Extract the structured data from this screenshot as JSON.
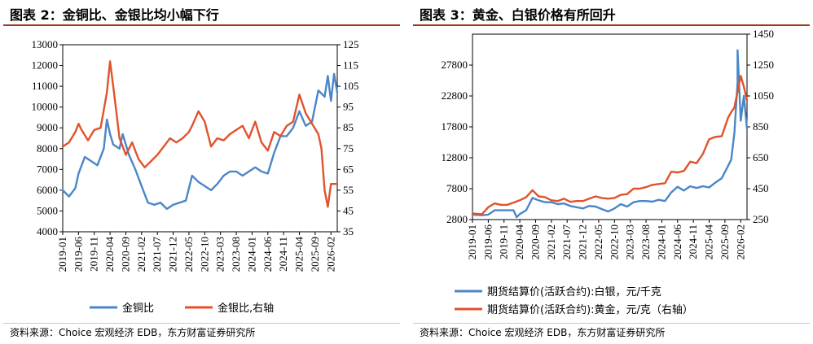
{
  "panels": [
    {
      "title": "图表 2：金铜比、金银比均小幅下行",
      "source": "资料来源：Choice 宏观经济 EDB，东方财富证券研究所"
    },
    {
      "title": "图表 3：黄金、白银价格有所回升",
      "source": "资料来源：Choice 宏观经济 EDB，东方财富证券研究所"
    }
  ],
  "chart_data": [
    {
      "type": "line",
      "x_ticks": [
        "2019-01",
        "2019-06",
        "2019-11",
        "2020-04",
        "2020-09",
        "2021-02",
        "2021-07",
        "2021-12",
        "2022-05",
        "2022-10",
        "2023-03",
        "2023-08",
        "2024-01",
        "2024-06",
        "2024-11",
        "2025-04",
        "2025-09",
        "2026-02"
      ],
      "x_range": [
        "2019-01",
        "2026-04"
      ],
      "y_left": {
        "range": [
          4000,
          13000
        ],
        "ticks": [
          "4000",
          "5000",
          "6000",
          "7000",
          "8000",
          "9000",
          "10000",
          "11000",
          "12000",
          "13000"
        ]
      },
      "y_right": {
        "range": [
          35,
          125
        ],
        "ticks": [
          "35",
          "45",
          "55",
          "65",
          "75",
          "85",
          "95",
          "105",
          "115",
          "125"
        ]
      },
      "legend_position": "bottom",
      "grid": false,
      "series": [
        {
          "name": "金铜比",
          "axis": "left",
          "color": "#4a86c8",
          "points": [
            [
              "2019-01",
              6000
            ],
            [
              "2019-03",
              5700
            ],
            [
              "2019-05",
              6100
            ],
            [
              "2019-06",
              6800
            ],
            [
              "2019-08",
              7600
            ],
            [
              "2019-10",
              7400
            ],
            [
              "2019-12",
              7200
            ],
            [
              "2020-02",
              8000
            ],
            [
              "2020-03",
              9400
            ],
            [
              "2020-04",
              8700
            ],
            [
              "2020-05",
              8200
            ],
            [
              "2020-07",
              8000
            ],
            [
              "2020-08",
              8700
            ],
            [
              "2020-10",
              7700
            ],
            [
              "2020-12",
              7000
            ],
            [
              "2021-02",
              6200
            ],
            [
              "2021-04",
              5400
            ],
            [
              "2021-06",
              5300
            ],
            [
              "2021-08",
              5400
            ],
            [
              "2021-10",
              5100
            ],
            [
              "2021-12",
              5300
            ],
            [
              "2022-02",
              5400
            ],
            [
              "2022-04",
              5500
            ],
            [
              "2022-06",
              6700
            ],
            [
              "2022-08",
              6400
            ],
            [
              "2022-10",
              6200
            ],
            [
              "2022-12",
              6000
            ],
            [
              "2023-02",
              6300
            ],
            [
              "2023-04",
              6700
            ],
            [
              "2023-06",
              6900
            ],
            [
              "2023-08",
              6900
            ],
            [
              "2023-10",
              6700
            ],
            [
              "2023-12",
              6900
            ],
            [
              "2024-02",
              7100
            ],
            [
              "2024-04",
              6900
            ],
            [
              "2024-06",
              6800
            ],
            [
              "2024-08",
              7800
            ],
            [
              "2024-10",
              8600
            ],
            [
              "2024-12",
              8600
            ],
            [
              "2025-02",
              9000
            ],
            [
              "2025-04",
              9800
            ],
            [
              "2025-06",
              9100
            ],
            [
              "2025-08",
              9300
            ],
            [
              "2025-10",
              10800
            ],
            [
              "2025-12",
              10500
            ],
            [
              "2026-01",
              11500
            ],
            [
              "2026-02",
              10300
            ],
            [
              "2026-03",
              11600
            ],
            [
              "2026-04",
              10700
            ]
          ]
        },
        {
          "name": "金银比,右轴",
          "axis": "right",
          "color": "#e0532b",
          "points": [
            [
              "2019-01",
              76
            ],
            [
              "2019-03",
              78
            ],
            [
              "2019-05",
              83
            ],
            [
              "2019-06",
              87
            ],
            [
              "2019-07",
              84
            ],
            [
              "2019-09",
              79
            ],
            [
              "2019-11",
              84
            ],
            [
              "2020-01",
              85
            ],
            [
              "2020-03",
              102
            ],
            [
              "2020-04",
              117
            ],
            [
              "2020-05",
              105
            ],
            [
              "2020-07",
              80
            ],
            [
              "2020-09",
              72
            ],
            [
              "2020-11",
              78
            ],
            [
              "2021-01",
              70
            ],
            [
              "2021-03",
              66
            ],
            [
              "2021-05",
              69
            ],
            [
              "2021-07",
              72
            ],
            [
              "2021-09",
              76
            ],
            [
              "2021-11",
              80
            ],
            [
              "2022-01",
              78
            ],
            [
              "2022-03",
              80
            ],
            [
              "2022-05",
              83
            ],
            [
              "2022-06",
              86
            ],
            [
              "2022-08",
              93
            ],
            [
              "2022-10",
              88
            ],
            [
              "2022-12",
              76
            ],
            [
              "2023-02",
              80
            ],
            [
              "2023-04",
              79
            ],
            [
              "2023-06",
              82
            ],
            [
              "2023-08",
              84
            ],
            [
              "2023-10",
              86
            ],
            [
              "2023-12",
              80
            ],
            [
              "2024-02",
              88
            ],
            [
              "2024-04",
              78
            ],
            [
              "2024-06",
              74
            ],
            [
              "2024-08",
              83
            ],
            [
              "2024-10",
              81
            ],
            [
              "2024-12",
              86
            ],
            [
              "2025-02",
              88
            ],
            [
              "2025-04",
              101
            ],
            [
              "2025-06",
              92
            ],
            [
              "2025-08",
              87
            ],
            [
              "2025-10",
              82
            ],
            [
              "2025-11",
              75
            ],
            [
              "2025-12",
              55
            ],
            [
              "2026-01",
              47
            ],
            [
              "2026-02",
              58
            ],
            [
              "2026-04",
              58
            ]
          ]
        }
      ]
    },
    {
      "type": "line",
      "x_ticks": [
        "2019-01",
        "2019-06",
        "2019-11",
        "2020-04",
        "2020-09",
        "2021-02",
        "2021-07",
        "2021-12",
        "2022-05",
        "2022-10",
        "2023-03",
        "2023-08",
        "2024-01",
        "2024-06",
        "2024-11",
        "2025-04",
        "2025-09",
        "2026-02"
      ],
      "x_range": [
        "2019-01",
        "2026-04"
      ],
      "y_left": {
        "range": [
          2800,
          32800
        ],
        "ticks": [
          "2800",
          "7800",
          "12800",
          "17800",
          "22800",
          "27800"
        ]
      },
      "y_right": {
        "range": [
          250,
          1450
        ],
        "ticks": [
          "250",
          "450",
          "650",
          "850",
          "1050",
          "1250",
          "1450"
        ]
      },
      "legend_position": "bottom",
      "grid": false,
      "series": [
        {
          "name": "期货结算价(活跃合约):白银，元/千克",
          "axis": "left",
          "color": "#4a86c8",
          "points": [
            [
              "2019-01",
              3600
            ],
            [
              "2019-04",
              3500
            ],
            [
              "2019-06",
              3600
            ],
            [
              "2019-08",
              4300
            ],
            [
              "2019-10",
              4300
            ],
            [
              "2019-12",
              4300
            ],
            [
              "2020-02",
              4300
            ],
            [
              "2020-03",
              3200
            ],
            [
              "2020-04",
              3700
            ],
            [
              "2020-06",
              4300
            ],
            [
              "2020-08",
              6300
            ],
            [
              "2020-10",
              5900
            ],
            [
              "2020-12",
              5600
            ],
            [
              "2021-02",
              5600
            ],
            [
              "2021-04",
              5300
            ],
            [
              "2021-06",
              5400
            ],
            [
              "2021-08",
              5000
            ],
            [
              "2021-10",
              4800
            ],
            [
              "2021-12",
              4600
            ],
            [
              "2022-02",
              5000
            ],
            [
              "2022-04",
              4900
            ],
            [
              "2022-06",
              4500
            ],
            [
              "2022-08",
              4100
            ],
            [
              "2022-10",
              4600
            ],
            [
              "2022-12",
              5300
            ],
            [
              "2023-02",
              4900
            ],
            [
              "2023-04",
              5600
            ],
            [
              "2023-06",
              5800
            ],
            [
              "2023-08",
              5800
            ],
            [
              "2023-10",
              5700
            ],
            [
              "2023-12",
              6000
            ],
            [
              "2024-02",
              5800
            ],
            [
              "2024-04",
              7200
            ],
            [
              "2024-06",
              8100
            ],
            [
              "2024-08",
              7500
            ],
            [
              "2024-10",
              8200
            ],
            [
              "2024-12",
              7900
            ],
            [
              "2025-02",
              8200
            ],
            [
              "2025-04",
              8000
            ],
            [
              "2025-06",
              8800
            ],
            [
              "2025-08",
              9500
            ],
            [
              "2025-10",
              11500
            ],
            [
              "2025-11",
              12500
            ],
            [
              "2025-12",
              16800
            ],
            [
              "2026-01",
              25000
            ],
            [
              "2026-01",
              30200
            ],
            [
              "2026-02",
              18800
            ],
            [
              "2026-03",
              22800
            ],
            [
              "2026-04",
              17500
            ]
          ]
        },
        {
          "name": "期货结算价(活跃合约):黄金，元/克（右轴）",
          "axis": "right",
          "color": "#e0532b",
          "points": [
            [
              "2019-01",
              290
            ],
            [
              "2019-04",
              285
            ],
            [
              "2019-06",
              330
            ],
            [
              "2019-08",
              355
            ],
            [
              "2019-10",
              345
            ],
            [
              "2019-12",
              345
            ],
            [
              "2020-02",
              360
            ],
            [
              "2020-04",
              375
            ],
            [
              "2020-06",
              395
            ],
            [
              "2020-08",
              440
            ],
            [
              "2020-10",
              400
            ],
            [
              "2020-12",
              395
            ],
            [
              "2021-02",
              375
            ],
            [
              "2021-04",
              370
            ],
            [
              "2021-06",
              385
            ],
            [
              "2021-08",
              365
            ],
            [
              "2021-10",
              370
            ],
            [
              "2021-12",
              370
            ],
            [
              "2022-02",
              385
            ],
            [
              "2022-04",
              400
            ],
            [
              "2022-06",
              390
            ],
            [
              "2022-08",
              385
            ],
            [
              "2022-10",
              390
            ],
            [
              "2022-12",
              410
            ],
            [
              "2023-02",
              415
            ],
            [
              "2023-04",
              450
            ],
            [
              "2023-06",
              450
            ],
            [
              "2023-08",
              460
            ],
            [
              "2023-10",
              475
            ],
            [
              "2023-12",
              480
            ],
            [
              "2024-02",
              485
            ],
            [
              "2024-04",
              560
            ],
            [
              "2024-06",
              555
            ],
            [
              "2024-08",
              565
            ],
            [
              "2024-10",
              625
            ],
            [
              "2024-12",
              615
            ],
            [
              "2025-02",
              675
            ],
            [
              "2025-04",
              770
            ],
            [
              "2025-06",
              785
            ],
            [
              "2025-08",
              790
            ],
            [
              "2025-10",
              910
            ],
            [
              "2025-11",
              945
            ],
            [
              "2025-12",
              975
            ],
            [
              "2026-01",
              1080
            ],
            [
              "2026-02",
              1180
            ],
            [
              "2026-03",
              1110
            ],
            [
              "2026-04",
              1020
            ]
          ]
        }
      ]
    }
  ]
}
